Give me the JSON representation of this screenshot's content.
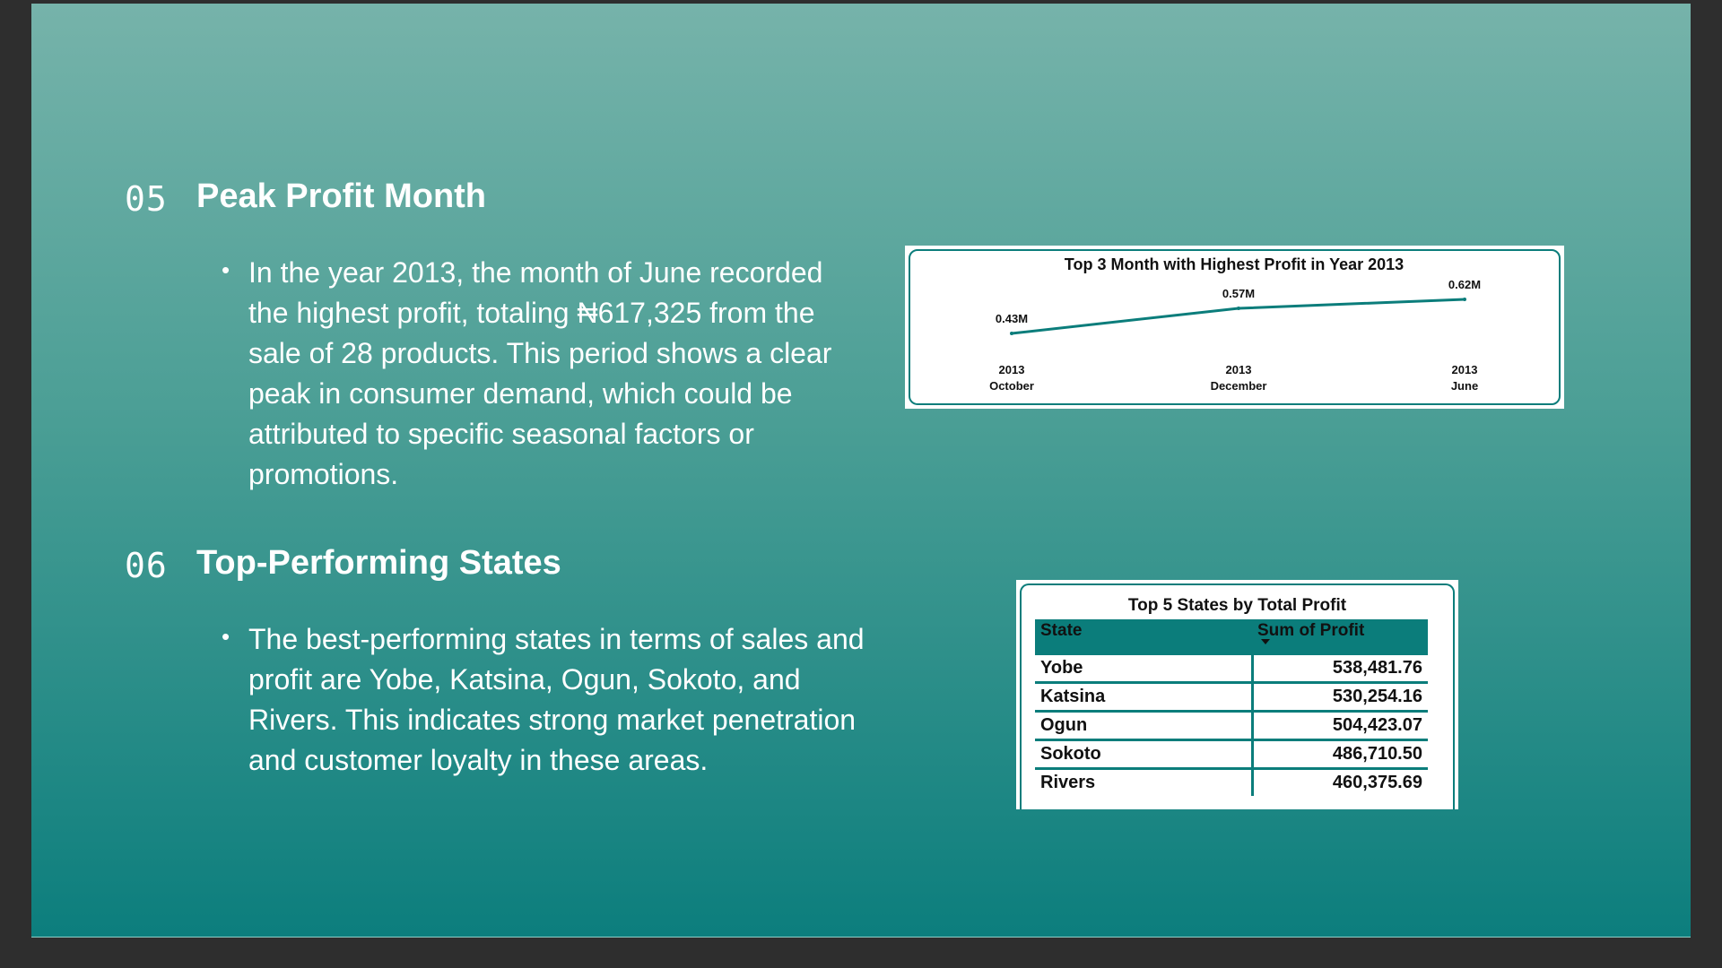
{
  "sections": [
    {
      "number": "05",
      "title": "Peak Profit Month",
      "bullet": "In the year 2013, the month of June recorded the highest profit, totaling ₦617,325 from the sale of 28 products. This period shows a clear peak in consumer demand, which could be attributed to specific seasonal factors or promotions.",
      "bullet_lines": [
        "In the year 2013, the month of June recorded",
        "the highest profit, totaling ₦617,325 from the",
        "sale of 28 products. This period shows a clear",
        "peak in consumer demand, which could be",
        "attributed to specific seasonal factors or",
        "promotions."
      ]
    },
    {
      "number": "06",
      "title": "Top-Performing States",
      "bullet": "The best-performing states in terms of sales and profit are Yobe, Katsina, Ogun, Sokoto, and Rivers. This indicates strong market penetration and customer loyalty in these areas.",
      "bullet_lines": [
        "The best-performing states in terms of sales and",
        "profit are Yobe, Katsina, Ogun, Sokoto, and",
        "Rivers. This indicates strong market penetration",
        "and customer loyalty in these areas."
      ]
    }
  ],
  "colors": {
    "accent": "#0b7d7b",
    "gradient_top": "#76b3aa",
    "gradient_bottom": "#0c7e7d",
    "frame": "#2e2e2e"
  },
  "chart_data": [
    {
      "type": "line",
      "title": "Top 3 Month with Highest Profit in Year 2013",
      "categories": [
        [
          "2013",
          "October"
        ],
        [
          "2013",
          "December"
        ],
        [
          "2013",
          "June"
        ]
      ],
      "values": [
        0.43,
        0.57,
        0.62
      ],
      "data_labels": [
        "0.43M",
        "0.57M",
        "0.62M"
      ],
      "ylim": [
        0.3,
        0.65
      ],
      "grid": false,
      "line_color": "#0b7d7b"
    },
    {
      "type": "table",
      "title": "Top 5 States by Total Profit",
      "columns": [
        "State",
        "Sum of Profit"
      ],
      "sort": "descending",
      "rows": [
        [
          "Yobe",
          "538,481.76"
        ],
        [
          "Katsina",
          "530,254.16"
        ],
        [
          "Ogun",
          "504,423.07"
        ],
        [
          "Sokoto",
          "486,710.50"
        ],
        [
          "Rivers",
          "460,375.69"
        ]
      ]
    }
  ]
}
